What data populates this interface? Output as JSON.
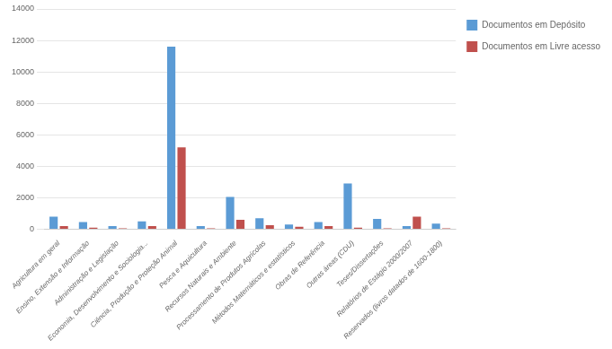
{
  "chart_data": {
    "type": "bar",
    "categories": [
      "Agricultura em geral",
      "Ensino, Extensão e Informação",
      "Administração e Legislação",
      "Economia, Desenvolvimento e Sociologia...",
      "Ciência, Produção e Proteção Animal",
      "Pesca e Aquicultura",
      "Recursos Naturais e Ambiente",
      "Processamento de Produtos Agrícolas",
      "Métodos Matemáticos e estatísticos",
      "Obras de Referência",
      "Outras áreas (CDU)",
      "Teses/Dissertações",
      "Relatórios de Estágio 2000/2007",
      "Reservados (livros datados de 1600-1800)"
    ],
    "series": [
      {
        "name": "Documentos em Depósito",
        "color": "#5B9BD5",
        "values": [
          800,
          450,
          200,
          500,
          11600,
          200,
          2050,
          700,
          300,
          450,
          2900,
          650,
          200,
          350
        ]
      },
      {
        "name": "Documentos em Livre acesso",
        "color": "#C0504D",
        "values": [
          200,
          100,
          50,
          200,
          5200,
          50,
          600,
          250,
          150,
          200,
          100,
          50,
          800,
          50
        ]
      }
    ],
    "ylim": [
      0,
      14000
    ],
    "yticks": [
      0,
      2000,
      4000,
      6000,
      8000,
      10000,
      12000,
      14000
    ],
    "grid": true,
    "legend": "right"
  }
}
